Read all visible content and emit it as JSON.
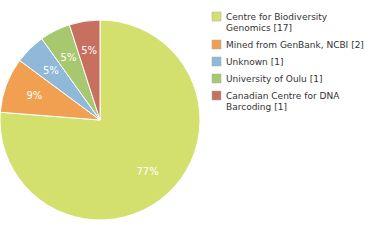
{
  "chart_data": {
    "type": "pie",
    "categories": [
      "Centre for Biodiversity\nGenomics [17]",
      "Mined from GenBank, NCBI [2]",
      "Unknown [1]",
      "University of Oulu [1]",
      "Canadian Centre for DNA\nBarcoding [1]"
    ],
    "values": [
      77,
      9,
      5,
      5,
      5
    ],
    "value_labels": [
      "77%",
      "9%",
      "5%",
      "5%",
      "5%"
    ],
    "colors": [
      "#d4e06e",
      "#f0a050",
      "#90b8d8",
      "#a8c870",
      "#c87060"
    ],
    "data_labels": true,
    "legend": "right"
  }
}
